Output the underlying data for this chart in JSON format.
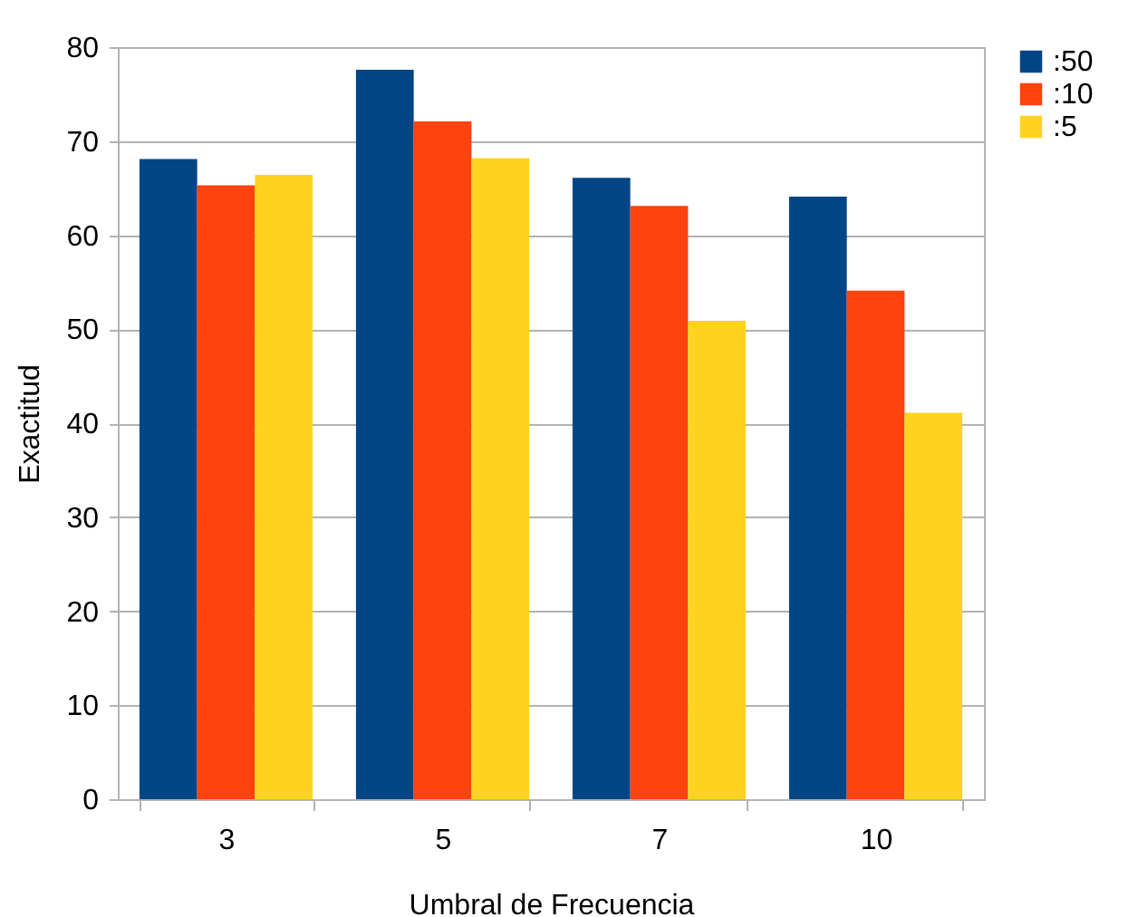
{
  "chart_data": {
    "type": "bar",
    "xlabel": "Umbral de Frecuencia",
    "ylabel": "Exactitud",
    "categories": [
      "3",
      "5",
      "7",
      "10"
    ],
    "series": [
      {
        "name": ":50",
        "color": "#004586",
        "values": [
          68.1,
          77.6,
          66.1,
          64.1
        ]
      },
      {
        "name": ":10",
        "color": "#ff420e",
        "values": [
          65.3,
          72.1,
          63.1,
          54.1
        ]
      },
      {
        "name": ":5",
        "color": "#ffd320",
        "values": [
          66.4,
          68.2,
          50.9,
          41.1
        ]
      }
    ],
    "ylim": [
      0,
      80
    ],
    "yticks": [
      0,
      10,
      20,
      30,
      40,
      50,
      60,
      70,
      80
    ],
    "grid": "y",
    "legend": "right"
  }
}
